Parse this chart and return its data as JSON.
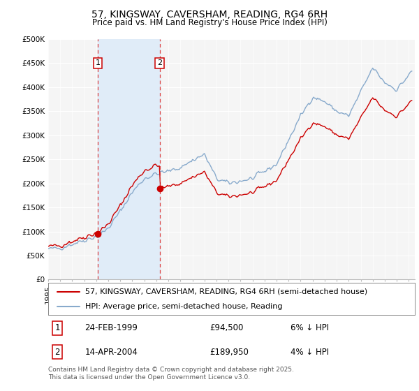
{
  "title": "57, KINGSWAY, CAVERSHAM, READING, RG4 6RH",
  "subtitle": "Price paid vs. HM Land Registry's House Price Index (HPI)",
  "legend_label_red": "57, KINGSWAY, CAVERSHAM, READING, RG4 6RH (semi-detached house)",
  "legend_label_blue": "HPI: Average price, semi-detached house, Reading",
  "annotation1_date": "24-FEB-1999",
  "annotation1_price": "£94,500",
  "annotation1_hpi": "6% ↓ HPI",
  "annotation2_date": "14-APR-2004",
  "annotation2_price": "£189,950",
  "annotation2_hpi": "4% ↓ HPI",
  "footnote": "Contains HM Land Registry data © Crown copyright and database right 2025.\nThis data is licensed under the Open Government Licence v3.0.",
  "ylim": [
    0,
    500000
  ],
  "yticks": [
    0,
    50000,
    100000,
    150000,
    200000,
    250000,
    300000,
    350000,
    400000,
    450000,
    500000
  ],
  "ytick_labels": [
    "£0",
    "£50K",
    "£100K",
    "£150K",
    "£200K",
    "£250K",
    "£300K",
    "£350K",
    "£400K",
    "£450K",
    "£500K"
  ],
  "xlim_start": 1995.0,
  "xlim_end": 2025.5,
  "marker1_x": 1999.12,
  "marker1_y": 94500,
  "marker2_x": 2004.28,
  "marker2_y": 189950,
  "background_color": "#ffffff",
  "plot_bg_color": "#f5f5f5",
  "grid_color": "#ffffff",
  "red_color": "#cc0000",
  "blue_color": "#88aacc",
  "shade_color": "#e0ecf8",
  "vline_color": "#dd4444",
  "title_fontsize": 10,
  "subtitle_fontsize": 8.5,
  "tick_fontsize": 7.5,
  "legend_fontsize": 8,
  "annotation_fontsize": 8.5
}
